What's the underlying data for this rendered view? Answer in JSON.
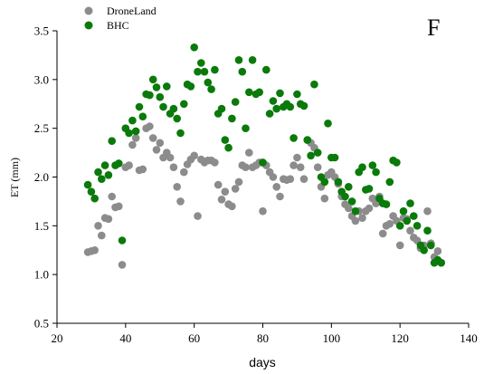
{
  "chart_data": {
    "type": "scatter",
    "title": "",
    "panel_label": "F",
    "xlabel": "days",
    "ylabel": "ET (mm)",
    "xlim": [
      20,
      140
    ],
    "ylim": [
      0.5,
      3.5
    ],
    "xticks": [
      20,
      40,
      60,
      80,
      100,
      120,
      140
    ],
    "yticks": [
      0.5,
      1.0,
      1.5,
      2.0,
      2.5,
      3.0,
      3.5
    ],
    "xtick_labels": [
      "20",
      "40",
      "60",
      "80",
      "100",
      "120",
      "140"
    ],
    "ytick_labels": [
      "0.5",
      "1.0",
      "1.5",
      "2.0",
      "2.5",
      "3.0",
      "3.5"
    ],
    "grid": false,
    "legend_position": "top-left",
    "series": [
      {
        "name": "DroneLand",
        "color": "#8c8c8c",
        "points": [
          [
            29,
            1.23
          ],
          [
            30,
            1.24
          ],
          [
            31,
            1.25
          ],
          [
            32,
            1.5
          ],
          [
            33,
            1.4
          ],
          [
            34,
            1.58
          ],
          [
            35,
            1.57
          ],
          [
            36,
            1.8
          ],
          [
            37,
            1.69
          ],
          [
            38,
            1.7
          ],
          [
            39,
            1.1
          ],
          [
            40,
            2.1
          ],
          [
            41,
            2.12
          ],
          [
            42,
            2.33
          ],
          [
            43,
            2.4
          ],
          [
            44,
            2.07
          ],
          [
            45,
            2.08
          ],
          [
            46,
            2.5
          ],
          [
            47,
            2.52
          ],
          [
            48,
            2.4
          ],
          [
            49,
            2.28
          ],
          [
            50,
            2.35
          ],
          [
            51,
            2.2
          ],
          [
            52,
            2.25
          ],
          [
            53,
            2.2
          ],
          [
            54,
            2.1
          ],
          [
            55,
            1.9
          ],
          [
            56,
            1.75
          ],
          [
            57,
            2.05
          ],
          [
            58,
            2.13
          ],
          [
            59,
            2.18
          ],
          [
            60,
            2.22
          ],
          [
            61,
            1.6
          ],
          [
            62,
            2.18
          ],
          [
            63,
            2.15
          ],
          [
            64,
            2.17
          ],
          [
            65,
            2.17
          ],
          [
            66,
            2.15
          ],
          [
            67,
            1.92
          ],
          [
            68,
            1.77
          ],
          [
            69,
            1.85
          ],
          [
            70,
            1.72
          ],
          [
            71,
            1.7
          ],
          [
            72,
            1.88
          ],
          [
            73,
            1.95
          ],
          [
            74,
            2.12
          ],
          [
            75,
            2.1
          ],
          [
            76,
            2.25
          ],
          [
            77,
            2.1
          ],
          [
            78,
            2.12
          ],
          [
            79,
            2.15
          ],
          [
            80,
            1.65
          ],
          [
            81,
            2.12
          ],
          [
            82,
            2.05
          ],
          [
            83,
            2.0
          ],
          [
            84,
            1.9
          ],
          [
            85,
            1.8
          ],
          [
            86,
            1.98
          ],
          [
            87,
            1.97
          ],
          [
            88,
            1.98
          ],
          [
            89,
            2.12
          ],
          [
            90,
            2.2
          ],
          [
            91,
            2.1
          ],
          [
            92,
            1.98
          ],
          [
            93,
            2.38
          ],
          [
            94,
            2.35
          ],
          [
            95,
            2.3
          ],
          [
            96,
            2.1
          ],
          [
            97,
            1.9
          ],
          [
            98,
            1.78
          ],
          [
            99,
            2.02
          ],
          [
            100,
            2.05
          ],
          [
            101,
            2.0
          ],
          [
            102,
            1.93
          ],
          [
            103,
            1.8
          ],
          [
            104,
            1.72
          ],
          [
            105,
            1.68
          ],
          [
            106,
            1.6
          ],
          [
            107,
            1.55
          ],
          [
            108,
            1.65
          ],
          [
            109,
            1.58
          ],
          [
            110,
            1.65
          ],
          [
            111,
            1.68
          ],
          [
            112,
            1.78
          ],
          [
            113,
            1.73
          ],
          [
            114,
            1.8
          ],
          [
            115,
            1.42
          ],
          [
            116,
            1.5
          ],
          [
            117,
            1.52
          ],
          [
            118,
            1.6
          ],
          [
            119,
            1.55
          ],
          [
            120,
            1.3
          ],
          [
            121,
            1.58
          ],
          [
            122,
            1.57
          ],
          [
            123,
            1.45
          ],
          [
            124,
            1.38
          ],
          [
            125,
            1.35
          ],
          [
            126,
            1.27
          ],
          [
            127,
            1.3
          ],
          [
            128,
            1.65
          ],
          [
            129,
            1.32
          ],
          [
            130,
            1.18
          ],
          [
            131,
            1.24
          ],
          [
            132,
            1.12
          ]
        ]
      },
      {
        "name": "BHC",
        "color": "#0a7a0a",
        "points": [
          [
            29,
            1.92
          ],
          [
            30,
            1.85
          ],
          [
            31,
            1.78
          ],
          [
            32,
            2.05
          ],
          [
            33,
            1.98
          ],
          [
            34,
            2.12
          ],
          [
            35,
            2.02
          ],
          [
            36,
            2.37
          ],
          [
            37,
            2.12
          ],
          [
            38,
            2.14
          ],
          [
            39,
            1.35
          ],
          [
            40,
            2.5
          ],
          [
            41,
            2.45
          ],
          [
            42,
            2.58
          ],
          [
            43,
            2.47
          ],
          [
            44,
            2.72
          ],
          [
            45,
            2.62
          ],
          [
            46,
            2.85
          ],
          [
            47,
            2.84
          ],
          [
            48,
            3.0
          ],
          [
            49,
            2.92
          ],
          [
            50,
            2.82
          ],
          [
            51,
            2.72
          ],
          [
            52,
            2.93
          ],
          [
            53,
            2.65
          ],
          [
            54,
            2.7
          ],
          [
            55,
            2.6
          ],
          [
            56,
            2.45
          ],
          [
            57,
            2.75
          ],
          [
            58,
            2.95
          ],
          [
            59,
            2.93
          ],
          [
            60,
            3.33
          ],
          [
            61,
            3.08
          ],
          [
            62,
            3.17
          ],
          [
            63,
            3.08
          ],
          [
            64,
            2.97
          ],
          [
            65,
            2.9
          ],
          [
            66,
            3.1
          ],
          [
            67,
            2.65
          ],
          [
            68,
            2.7
          ],
          [
            69,
            2.38
          ],
          [
            70,
            2.3
          ],
          [
            71,
            2.6
          ],
          [
            72,
            2.77
          ],
          [
            73,
            3.2
          ],
          [
            74,
            3.08
          ],
          [
            75,
            2.5
          ],
          [
            76,
            2.87
          ],
          [
            77,
            3.2
          ],
          [
            78,
            2.85
          ],
          [
            79,
            2.87
          ],
          [
            80,
            2.15
          ],
          [
            81,
            3.1
          ],
          [
            82,
            2.65
          ],
          [
            83,
            2.78
          ],
          [
            84,
            2.7
          ],
          [
            85,
            2.86
          ],
          [
            86,
            2.72
          ],
          [
            87,
            2.75
          ],
          [
            88,
            2.72
          ],
          [
            89,
            2.4
          ],
          [
            90,
            2.85
          ],
          [
            91,
            2.75
          ],
          [
            92,
            2.73
          ],
          [
            93,
            2.38
          ],
          [
            94,
            2.22
          ],
          [
            95,
            2.95
          ],
          [
            96,
            2.25
          ],
          [
            97,
            2.0
          ],
          [
            98,
            1.95
          ],
          [
            99,
            2.55
          ],
          [
            100,
            2.2
          ],
          [
            101,
            2.2
          ],
          [
            102,
            1.95
          ],
          [
            103,
            1.85
          ],
          [
            104,
            1.8
          ],
          [
            105,
            1.9
          ],
          [
            106,
            1.75
          ],
          [
            107,
            1.65
          ],
          [
            108,
            2.05
          ],
          [
            109,
            2.1
          ],
          [
            110,
            1.87
          ],
          [
            111,
            1.88
          ],
          [
            112,
            2.12
          ],
          [
            113,
            2.05
          ],
          [
            114,
            1.78
          ],
          [
            115,
            1.73
          ],
          [
            116,
            1.72
          ],
          [
            117,
            1.95
          ],
          [
            118,
            2.17
          ],
          [
            119,
            2.15
          ],
          [
            120,
            1.5
          ],
          [
            121,
            1.65
          ],
          [
            122,
            1.55
          ],
          [
            123,
            1.73
          ],
          [
            124,
            1.6
          ],
          [
            125,
            1.5
          ],
          [
            126,
            1.3
          ],
          [
            127,
            1.25
          ],
          [
            128,
            1.45
          ],
          [
            129,
            1.3
          ],
          [
            130,
            1.12
          ],
          [
            131,
            1.15
          ],
          [
            132,
            1.12
          ]
        ]
      }
    ]
  }
}
